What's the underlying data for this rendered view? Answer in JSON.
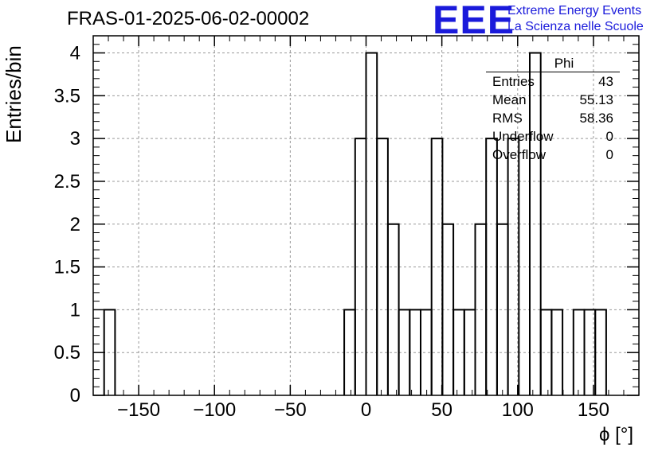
{
  "header": {
    "title": "FRAS-01-2025-06-02-00002",
    "logo_letters": "EEE",
    "logo_line1": "Extreme Energy Events",
    "logo_line2": "La Scienza nelle Scuole"
  },
  "stats": {
    "name": "Phi",
    "rows": [
      {
        "key": "Entries",
        "value": "43"
      },
      {
        "key": "Mean",
        "value": "55.13"
      },
      {
        "key": "RMS",
        "value": "58.36"
      },
      {
        "key": "Underflow",
        "value": "0"
      },
      {
        "key": "Overflow",
        "value": "0"
      }
    ]
  },
  "colors": {
    "line": "#000000",
    "grid": "#999999",
    "logo": "#1a1adb"
  },
  "chart_data": {
    "type": "bar",
    "style": "step-histogram",
    "xlabel": "ϕ [°]",
    "ylabel": "Entries/bin",
    "xlim": [
      -180,
      180
    ],
    "ylim": [
      0,
      4.2
    ],
    "grid": true,
    "xticks": [
      -150,
      -100,
      -50,
      0,
      50,
      100,
      150
    ],
    "xtick_labels": [
      "−150",
      "−100",
      "−50",
      "0",
      "50",
      "100",
      "150"
    ],
    "yticks": [
      0,
      0.5,
      1,
      1.5,
      2,
      2.5,
      3,
      3.5,
      4
    ],
    "ytick_labels": [
      "0",
      "0.5",
      "1",
      "1.5",
      "2",
      "2.5",
      "3",
      "3.5",
      "4"
    ],
    "bin_width": 7.2,
    "bin_edges": [
      -172.8,
      -165.6,
      -14.4,
      -7.2,
      0,
      7.2,
      14.4,
      21.6,
      28.8,
      36,
      43.2,
      50.4,
      57.6,
      64.8,
      72,
      79.2,
      86.4,
      93.6,
      100.8,
      108,
      115.2,
      122.4,
      129.6,
      136.8,
      144,
      151.2,
      158.4
    ],
    "bins": [
      {
        "x0": -172.8,
        "x1": -165.6,
        "count": 1
      },
      {
        "x0": -14.4,
        "x1": -7.2,
        "count": 1
      },
      {
        "x0": -7.2,
        "x1": 0,
        "count": 3
      },
      {
        "x0": 0,
        "x1": 7.2,
        "count": 4
      },
      {
        "x0": 7.2,
        "x1": 14.4,
        "count": 3
      },
      {
        "x0": 14.4,
        "x1": 21.6,
        "count": 2
      },
      {
        "x0": 21.6,
        "x1": 28.8,
        "count": 1
      },
      {
        "x0": 28.8,
        "x1": 36,
        "count": 1
      },
      {
        "x0": 36,
        "x1": 43.2,
        "count": 1
      },
      {
        "x0": 43.2,
        "x1": 50.4,
        "count": 3
      },
      {
        "x0": 50.4,
        "x1": 57.6,
        "count": 2
      },
      {
        "x0": 57.6,
        "x1": 64.8,
        "count": 1
      },
      {
        "x0": 64.8,
        "x1": 72,
        "count": 1
      },
      {
        "x0": 72,
        "x1": 79.2,
        "count": 2
      },
      {
        "x0": 79.2,
        "x1": 86.4,
        "count": 3
      },
      {
        "x0": 86.4,
        "x1": 93.6,
        "count": 2
      },
      {
        "x0": 93.6,
        "x1": 100.8,
        "count": 3
      },
      {
        "x0": 100.8,
        "x1": 108,
        "count": 0
      },
      {
        "x0": 108,
        "x1": 115.2,
        "count": 4
      },
      {
        "x0": 115.2,
        "x1": 122.4,
        "count": 1
      },
      {
        "x0": 122.4,
        "x1": 129.6,
        "count": 1
      },
      {
        "x0": 129.6,
        "x1": 136.8,
        "count": 0
      },
      {
        "x0": 136.8,
        "x1": 144,
        "count": 1
      },
      {
        "x0": 144,
        "x1": 151.2,
        "count": 1
      },
      {
        "x0": 151.2,
        "x1": 158.4,
        "count": 1
      }
    ]
  }
}
